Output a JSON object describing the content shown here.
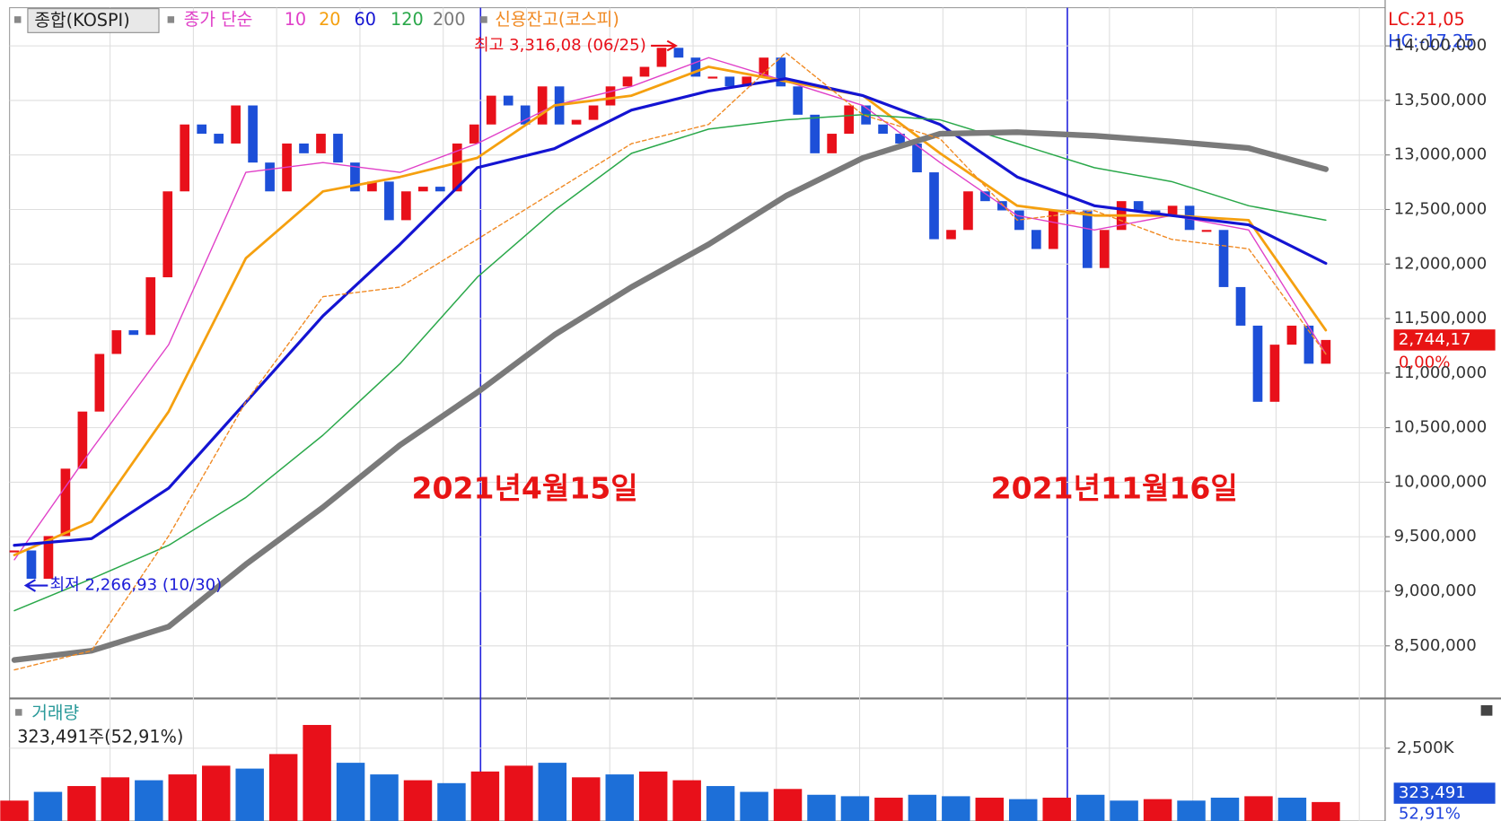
{
  "chart_data": [
    {
      "type": "candlestick",
      "title": "종합(KOSPI)",
      "values": [
        2335,
        2280,
        2363,
        2494,
        2605,
        2717,
        2763,
        2754,
        2866,
        3033,
        3163,
        3145,
        3126,
        3200,
        3089,
        3033,
        3126,
        3107,
        3145,
        3089,
        3033,
        3052,
        2977,
        3033,
        3042,
        3033,
        3126,
        3163,
        3219,
        3200,
        3163,
        3237,
        3163,
        3172,
        3200,
        3237,
        3256,
        3275,
        3312,
        3293,
        3256,
        3256,
        3237,
        3256,
        3293,
        3237,
        3182,
        3107,
        3145,
        3200,
        3163,
        3145,
        3126,
        3070,
        2940,
        2958,
        3033,
        3014,
        2996,
        2958,
        2921,
        2996,
        2996,
        2884,
        2958,
        3014,
        2996,
        2986,
        3005,
        2958,
        2958,
        2847,
        2772,
        2624,
        2735,
        2772,
        2698,
        2744.17
      ],
      "up_color": "#e8101a",
      "down_color": "#1d4fd8",
      "ylim": [
        2051,
        3390
      ],
      "annotations": [
        {
          "text": "최고 3,316,08 (06/25)",
          "value": 3316.08,
          "color": "#e8101a"
        },
        {
          "text": "최저 2,266,93 (10/30)",
          "value": 2266.93,
          "color": "#1d1dd8"
        }
      ],
      "last_label": "2,744,17",
      "change_label": "0,00%",
      "date_markers": [
        "2021년4월15일",
        "2021년11월16일"
      ],
      "lc_label": "LC:21,05",
      "hc_label": "HC:-17,25"
    },
    {
      "type": "line",
      "legend_prefix": "종가 단순",
      "grid": true,
      "ylim": [
        8035000,
        14350000
      ],
      "yticks": [
        {
          "value": 8500000,
          "label": "8,500,000"
        },
        {
          "value": 9000000,
          "label": "9,000,000"
        },
        {
          "value": 9500000,
          "label": "9,500,000"
        },
        {
          "value": 10000000,
          "label": "10,000,000"
        },
        {
          "value": 10500000,
          "label": "10,500,000"
        },
        {
          "value": 11000000,
          "label": "11,000,000"
        },
        {
          "value": 11500000,
          "label": "11,500,000"
        },
        {
          "value": 12000000,
          "label": "12,000,000"
        },
        {
          "value": 12500000,
          "label": "12,500,000"
        },
        {
          "value": 13000000,
          "label": "13,000,000"
        },
        {
          "value": 13500000,
          "label": "13,500,000"
        },
        {
          "value": 14000000,
          "label": "14,000,000"
        }
      ],
      "y2lim": [
        2051,
        3390
      ],
      "series": [
        {
          "name": "10",
          "color": "#e040c8",
          "line_width": 1.3,
          "axis": "y2",
          "values": [
            2317,
            2531,
            2735,
            3070,
            3089,
            3070,
            3126,
            3200,
            3237,
            3293,
            3247,
            3200,
            3089,
            2986,
            2958,
            2986,
            2958,
            2717
          ]
        },
        {
          "name": "20",
          "color": "#f5a00f",
          "line_width": 2.6,
          "axis": "y2",
          "values": [
            2326,
            2391,
            2605,
            2903,
            3033,
            3061,
            3098,
            3200,
            3219,
            3275,
            3247,
            3219,
            3107,
            3005,
            2986,
            2986,
            2977,
            2763
          ]
        },
        {
          "name": "60",
          "color": "#1414d2",
          "line_width": 3,
          "axis": "y2",
          "values": [
            2345,
            2358,
            2456,
            2623,
            2791,
            2930,
            3079,
            3116,
            3191,
            3228,
            3252,
            3219,
            3163,
            3061,
            3005,
            2986,
            2968,
            2893
          ]
        },
        {
          "name": "120",
          "color": "#2aa84a",
          "line_width": 1.4,
          "axis": "y2",
          "values": [
            2218,
            2280,
            2345,
            2438,
            2559,
            2698,
            2866,
            2996,
            3107,
            3154,
            3172,
            3182,
            3172,
            3126,
            3079,
            3052,
            3005,
            2977
          ]
        },
        {
          "name": "200",
          "color": "#7a7a7a",
          "line_width": 6,
          "axis": "y2",
          "values": [
            2122,
            2140,
            2187,
            2308,
            2419,
            2540,
            2642,
            2754,
            2847,
            2930,
            3024,
            3098,
            3145,
            3148,
            3141,
            3130,
            3117,
            3076
          ]
        },
        {
          "name": "신용잔고(코스피)",
          "color": "#f08a24",
          "line_width": 1.3,
          "dashed": true,
          "values": [
            8280000,
            8455000,
            9508000,
            10736000,
            11701000,
            11789000,
            12227000,
            12666000,
            13104000,
            13280000,
            13938000,
            13368000,
            13148000,
            12403000,
            12490000,
            12227000,
            12140000,
            11175000
          ]
        }
      ]
    },
    {
      "type": "bar",
      "title": "거래량",
      "subtitle": "323,491주(52,91%)",
      "values": [
        700,
        1000,
        1200,
        1500,
        1400,
        1600,
        1900,
        1800,
        2300,
        3300,
        2000,
        1600,
        1400,
        1300,
        1700,
        1900,
        2000,
        1500,
        1600,
        1700,
        1400,
        1200,
        1000,
        1100,
        900,
        850,
        800,
        900,
        850,
        800,
        750,
        800,
        900,
        700,
        750,
        700,
        800,
        850,
        800,
        650
      ],
      "colors": [
        "#e8101a",
        "#1d6fd8",
        "#e8101a",
        "#e8101a",
        "#1d6fd8",
        "#e8101a",
        "#e8101a",
        "#1d6fd8",
        "#e8101a",
        "#e8101a",
        "#1d6fd8",
        "#1d6fd8",
        "#e8101a",
        "#1d6fd8",
        "#e8101a",
        "#e8101a",
        "#1d6fd8",
        "#e8101a",
        "#1d6fd8",
        "#e8101a",
        "#e8101a",
        "#1d6fd8",
        "#1d6fd8",
        "#e8101a",
        "#1d6fd8",
        "#1d6fd8",
        "#e8101a",
        "#1d6fd8",
        "#1d6fd8",
        "#e8101a",
        "#1d6fd8",
        "#e8101a",
        "#1d6fd8",
        "#1d6fd8",
        "#e8101a",
        "#1d6fd8",
        "#1d6fd8",
        "#e8101a",
        "#1d6fd8",
        "#e8101a"
      ],
      "ylim": [
        0,
        4210
      ],
      "yticks": [
        {
          "value": 2500,
          "label": "2,500K"
        }
      ],
      "last_label": "323,491",
      "change_label": "52,91%"
    }
  ]
}
